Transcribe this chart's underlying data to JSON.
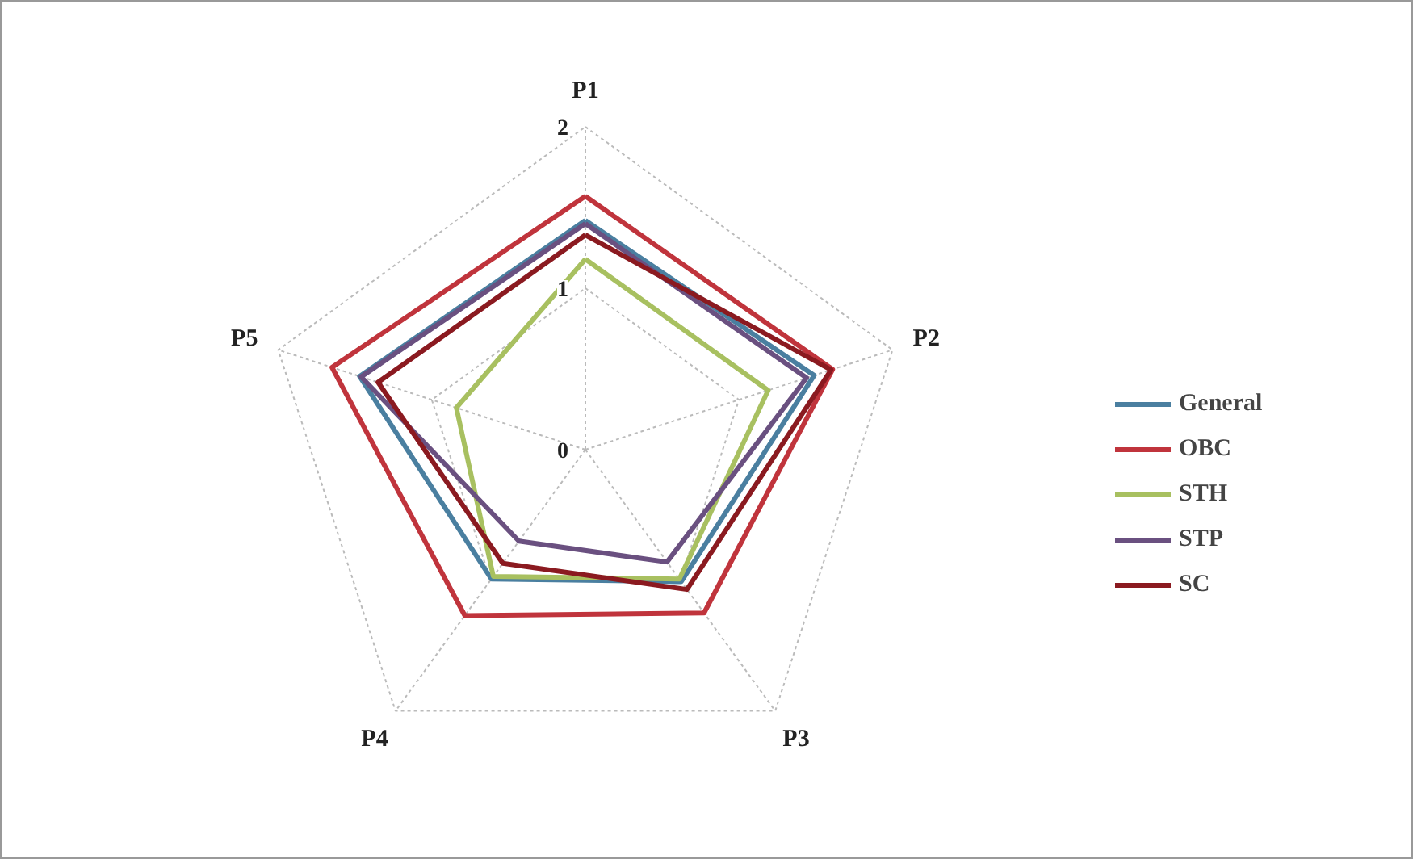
{
  "chart_data": {
    "type": "radar",
    "categories": [
      "P1",
      "P2",
      "P3",
      "P4",
      "P5"
    ],
    "ylim": [
      0,
      2
    ],
    "yticks": [
      0,
      1,
      2
    ],
    "grid": true,
    "legend": "right",
    "series": [
      {
        "name": "General",
        "color": "#4a7fa0",
        "values": [
          1.42,
          1.49,
          1.01,
          0.99,
          1.47
        ]
      },
      {
        "name": "OBC",
        "color": "#c0343c",
        "values": [
          1.57,
          1.61,
          1.25,
          1.27,
          1.65
        ]
      },
      {
        "name": "STH",
        "color": "#a8c060",
        "values": [
          1.18,
          1.19,
          0.99,
          0.97,
          0.84
        ]
      },
      {
        "name": "STP",
        "color": "#6a5080",
        "values": [
          1.4,
          1.44,
          0.86,
          0.7,
          1.46
        ]
      },
      {
        "name": "SC",
        "color": "#8b1a20",
        "values": [
          1.33,
          1.6,
          1.07,
          0.87,
          1.35
        ]
      }
    ]
  }
}
